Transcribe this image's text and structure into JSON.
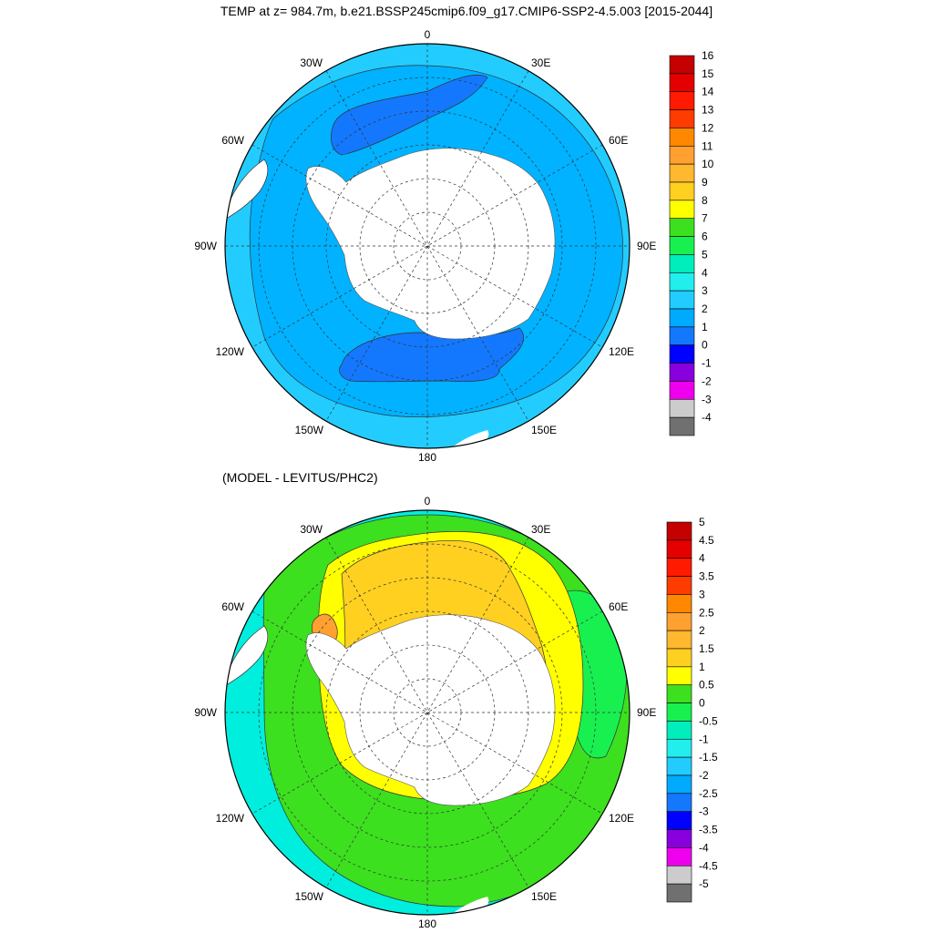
{
  "titles": {
    "main": "TEMP at z= 984.7m, b.e21.BSSP245cmip6.f09_g17.CMIP6-SSP2-4.5.003 [2015-2044]",
    "sub": "(MODEL - LEVITUS/PHC2)"
  },
  "maps": [
    {
      "longitude_labels": [
        "0",
        "30E",
        "60E",
        "90E",
        "120E",
        "150E",
        "180",
        "150W",
        "120W",
        "90W",
        "60W",
        "30W"
      ],
      "colorbar": {
        "labels": [
          "16",
          "15",
          "14",
          "13",
          "12",
          "11",
          "10",
          "9",
          "8",
          "7",
          "6",
          "5",
          "4",
          "3",
          "2",
          "1",
          "0",
          "-1",
          "-2",
          "-3",
          "-4"
        ],
        "colors": [
          "#c40000",
          "#e40000",
          "#ff1a00",
          "#ff3c00",
          "#ff8800",
          "#ffa030",
          "#ffb830",
          "#ffd020",
          "#ffff00",
          "#3ce01e",
          "#18f050",
          "#00eebb",
          "#22eeee",
          "#22ccff",
          "#00aaff",
          "#1478ff",
          "#0000ff",
          "#8800dd",
          "#ee00ee",
          "#cccccc",
          "#707070"
        ]
      },
      "regions": {
        "ocean_main": "#00b2ff",
        "outer_band": "#22ccff",
        "cold_patches": "#1478ff",
        "land": "#ffffff"
      }
    },
    {
      "longitude_labels": [
        "0",
        "30E",
        "60E",
        "90E",
        "120E",
        "150E",
        "180",
        "150W",
        "120W",
        "90W",
        "60W",
        "30W"
      ],
      "colorbar": {
        "labels": [
          "5",
          "4.5",
          "4",
          "3.5",
          "3",
          "2.5",
          "2",
          "1.5",
          "1",
          "0.5",
          "0",
          "-0.5",
          "-1",
          "-1.5",
          "-2",
          "-2.5",
          "-3",
          "-3.5",
          "-4",
          "-4.5",
          "-5"
        ],
        "colors": [
          "#c40000",
          "#e40000",
          "#ff1a00",
          "#ff3c00",
          "#ff8800",
          "#ffa030",
          "#ffb830",
          "#ffd020",
          "#ffff00",
          "#3ce01e",
          "#18f050",
          "#00eebb",
          "#22eeee",
          "#22ccff",
          "#00aaff",
          "#1478ff",
          "#0000ff",
          "#8800dd",
          "#ee00ee",
          "#cccccc",
          "#707070"
        ]
      },
      "regions": {
        "outer_west": "#00eedd",
        "green_ring": "#3ce01e",
        "light_green": "#18f050",
        "yellow": "#ffff00",
        "orange": "#ffd020",
        "dark_orange": "#ffa030",
        "land": "#ffffff"
      }
    }
  ]
}
